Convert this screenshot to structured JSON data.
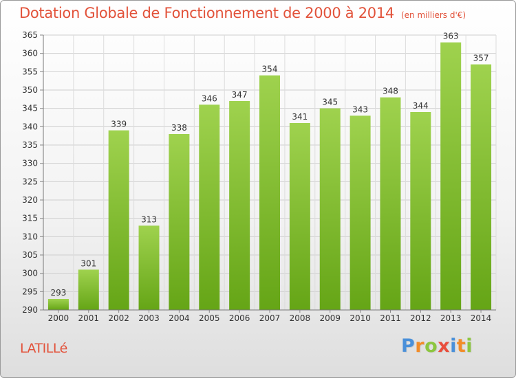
{
  "title": "Dotation Globale de Fonctionnement de 2000 à 2014",
  "subtitle": "(en milliers d'€)",
  "commune": "LATILLé",
  "logo": {
    "letters": [
      "P",
      "r",
      "o",
      "x",
      "i",
      "t",
      "i"
    ],
    "colors": [
      "#4a90d9",
      "#f28c28",
      "#8cc63f",
      "#e94e3c",
      "#4a90d9",
      "#f28c28",
      "#8cc63f"
    ]
  },
  "chart_data": {
    "type": "bar",
    "categories": [
      "2000",
      "2001",
      "2002",
      "2003",
      "2004",
      "2005",
      "2006",
      "2007",
      "2008",
      "2009",
      "2010",
      "2011",
      "2012",
      "2013",
      "2014"
    ],
    "values": [
      293,
      301,
      339,
      313,
      338,
      346,
      347,
      354,
      341,
      345,
      343,
      348,
      344,
      363,
      357
    ],
    "value_labels": [
      "293",
      "301",
      "339",
      "313",
      "338",
      "346",
      "347",
      "354",
      "341",
      "345",
      "343",
      "348",
      "344",
      "363",
      "357"
    ],
    "ylim": [
      290,
      365
    ],
    "yticks": [
      "290",
      "295",
      "300",
      "305",
      "310",
      "315",
      "320",
      "325",
      "330",
      "335",
      "340",
      "345",
      "350",
      "355",
      "360",
      "365"
    ],
    "bar_color": "#8cc63f",
    "grid": true,
    "xlabel": "",
    "ylabel": ""
  }
}
